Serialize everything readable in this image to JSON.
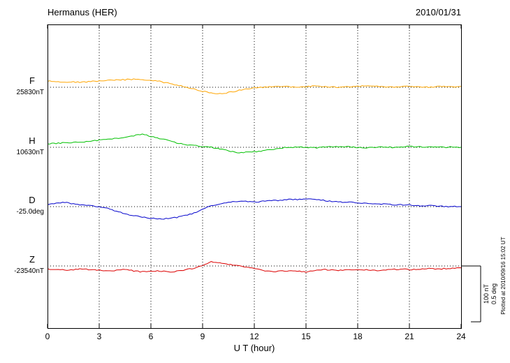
{
  "header": {
    "title": "Hermanus (HER)",
    "date": "2010/01/31"
  },
  "xaxis": {
    "label": "U T (hour)",
    "ticks": [
      0,
      3,
      6,
      9,
      12,
      15,
      18,
      21,
      24
    ],
    "range": [
      0,
      24
    ]
  },
  "scale_bar": {
    "label_nt": "100 nT",
    "label_deg": "0.5 deg"
  },
  "footer_note": "Plotted at 2010/09/16 15:02 UT",
  "chart_data": {
    "type": "line",
    "title": "Hermanus (HER) magnetogram",
    "date": "2010/01/31",
    "xlabel": "U T (hour)",
    "x_range": [
      0,
      24
    ],
    "x_hours_step": 0.5,
    "grid": "dotted vertical lines every 3 hours; dotted horizontal baseline per component",
    "scale": {
      "nT_per_bar": 100,
      "deg_per_bar": 0.5
    },
    "series": [
      {
        "name": "F",
        "label": "F",
        "baseline_label": "25830nT",
        "unit": "nT",
        "color": "#ffa500",
        "values": [
          14,
          13,
          12,
          12,
          11,
          13,
          14,
          15,
          16,
          17,
          18,
          17,
          15,
          13,
          9,
          5,
          1,
          -4,
          -9,
          -13,
          -14,
          -12,
          -8,
          -4,
          -1,
          0,
          1,
          2,
          1,
          0,
          1,
          3,
          2,
          1,
          0,
          1,
          2,
          3,
          2,
          1,
          0,
          1,
          2,
          1,
          0,
          1,
          2,
          1,
          2
        ]
      },
      {
        "name": "H",
        "label": "H",
        "baseline_label": "10630nT",
        "unit": "nT",
        "color": "#00c000",
        "values": [
          8,
          9,
          10,
          11,
          12,
          14,
          16,
          18,
          20,
          22,
          26,
          30,
          24,
          20,
          16,
          10,
          6,
          4,
          2,
          0,
          -4,
          -8,
          -12,
          -11,
          -10,
          -8,
          -5,
          -2,
          0,
          1,
          0,
          -1,
          0,
          1,
          2,
          1,
          0,
          -1,
          0,
          1,
          0,
          1,
          2,
          1,
          0,
          1,
          0,
          1,
          0
        ]
      },
      {
        "name": "D",
        "label": "D",
        "baseline_label": "-25.0deg",
        "unit": "deg",
        "color": "#0000cc",
        "values": [
          0.02,
          0.04,
          0.05,
          0.03,
          0.02,
          0.01,
          0.0,
          -0.02,
          -0.05,
          -0.08,
          -0.1,
          -0.12,
          -0.13,
          -0.14,
          -0.13,
          -0.12,
          -0.1,
          -0.07,
          -0.03,
          0.01,
          0.03,
          0.05,
          0.06,
          0.06,
          0.05,
          0.06,
          0.07,
          0.07,
          0.08,
          0.08,
          0.09,
          0.08,
          0.07,
          0.06,
          0.05,
          0.05,
          0.04,
          0.04,
          0.03,
          0.03,
          0.02,
          0.02,
          0.02,
          0.01,
          0.01,
          0.01,
          0.0,
          0.0,
          0.0
        ]
      },
      {
        "name": "Z",
        "label": "Z",
        "baseline_label": "-23540nT",
        "unit": "nT",
        "color": "#dd0000",
        "values": [
          -7,
          -8,
          -9,
          -8,
          -7,
          -8,
          -9,
          -11,
          -10,
          -8,
          -11,
          -13,
          -12,
          -11,
          -13,
          -12,
          -9,
          -5,
          1,
          9,
          7,
          4,
          1,
          -2,
          -6,
          -10,
          -13,
          -12,
          -11,
          -12,
          -13,
          -11,
          -8,
          -9,
          -10,
          -9,
          -8,
          -9,
          -10,
          -9,
          -8,
          -7,
          -8,
          -7,
          -6,
          -7,
          -6,
          -5,
          -4
        ]
      }
    ]
  }
}
